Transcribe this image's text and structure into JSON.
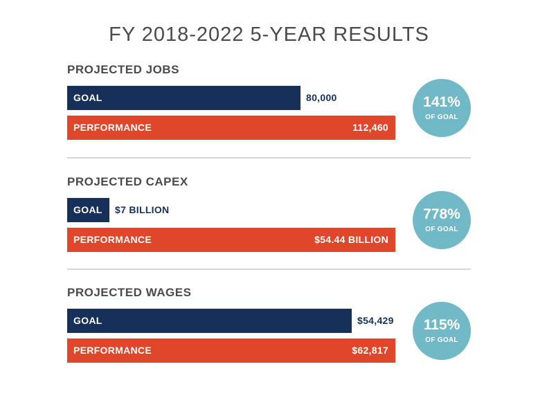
{
  "title": "FY 2018-2022 5-YEAR RESULTS",
  "sections": [
    {
      "label": "PROJECTED JOBS",
      "goal_label": "GOAL",
      "goal_value_text": "80,000",
      "performance_label": "PERFORMANCE",
      "performance_value_text": "112,460",
      "percent_text": "141%",
      "of_goal_text": "OF GOAL"
    },
    {
      "label": "PROJECTED CAPEX",
      "goal_label": "GOAL",
      "goal_value_text": "$7 BILLION",
      "performance_label": "PERFORMANCE",
      "performance_value_text": "$54.44 BILLION",
      "percent_text": "778%",
      "of_goal_text": "OF GOAL"
    },
    {
      "label": "PROJECTED WAGES",
      "goal_label": "GOAL",
      "goal_value_text": "$54,429",
      "performance_label": "PERFORMANCE",
      "performance_value_text": "$62,817",
      "percent_text": "115%",
      "of_goal_text": "OF GOAL"
    }
  ],
  "colors": {
    "goal": "#17305a",
    "performance": "#e04629",
    "circle": "#72b9c8",
    "text": "#4a4a4a"
  },
  "chart_data": [
    {
      "type": "bar",
      "title": "PROJECTED JOBS",
      "categories": [
        "GOAL",
        "PERFORMANCE"
      ],
      "values": [
        80000,
        112460
      ],
      "percent_of_goal": 141
    },
    {
      "type": "bar",
      "title": "PROJECTED CAPEX",
      "categories": [
        "GOAL",
        "PERFORMANCE"
      ],
      "values": [
        7,
        54.44
      ],
      "percent_of_goal": 778
    },
    {
      "type": "bar",
      "title": "PROJECTED WAGES",
      "categories": [
        "GOAL",
        "PERFORMANCE"
      ],
      "values": [
        54429,
        62817
      ],
      "percent_of_goal": 115
    }
  ]
}
